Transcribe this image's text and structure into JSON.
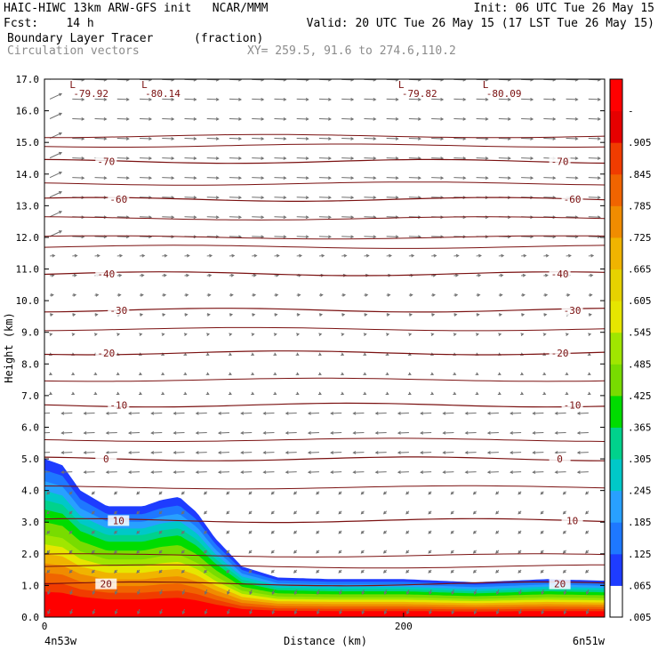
{
  "header": {
    "line1_left": "HAIC-HIWC 13km ARW-GFS init   NCAR/MMM",
    "line1_right": "Init: 06 UTC Tue 26 May 15",
    "line2_left": "Fcst:    14 h",
    "line2_right": "Valid: 20 UTC Tue 26 May 15 (17 LST Tue 26 May 15)",
    "line3_left": "Boundary Layer Tracer",
    "line3_mid": "(fraction)",
    "line4_left": "Circulation vectors",
    "line4_mid": "XY= 259.5, 91.6 to 274.6,110.2"
  },
  "chart_data": {
    "type": "heatmap",
    "xlabel": "Distance (km)",
    "ylabel": "Height (km)",
    "x_ticks": [
      "0",
      "200"
    ],
    "x_tick_values": [
      0,
      200
    ],
    "xlim": [
      0,
      312
    ],
    "ylim": [
      0,
      17
    ],
    "y_ticks": [
      "0.0",
      "1.0",
      "2.0",
      "3.0",
      "4.0",
      "5.0",
      "6.0",
      "7.0",
      "8.0",
      "9.0",
      "10.0",
      "11.0",
      "12.0",
      "13.0",
      "14.0",
      "15.0",
      "16.0",
      "17.0"
    ],
    "endpoints": {
      "left": "4n53w",
      "right": "6n51w"
    },
    "colorbar": {
      "labels": [
        ".005",
        ".065",
        ".125",
        ".185",
        ".245",
        ".305",
        ".365",
        ".425",
        ".485",
        ".545",
        ".605",
        ".665",
        ".725",
        ".785",
        ".845",
        ".905",
        "-"
      ],
      "colors": [
        "#ffffff",
        "#1e3cff",
        "#1e78ff",
        "#28a0ff",
        "#00c8c8",
        "#00d28c",
        "#00dc00",
        "#78dc00",
        "#a0e600",
        "#e6e600",
        "#e6d200",
        "#f0b400",
        "#f08c00",
        "#f06400",
        "#f03c00",
        "#e60000",
        "#ff0000"
      ]
    },
    "temperature_contours": [
      {
        "label": "20",
        "height_km": 1.05
      },
      {
        "label": "10",
        "height_km": 3.05
      },
      {
        "label": "0",
        "height_km": 5.0
      },
      {
        "label": "-10",
        "height_km": 6.7
      },
      {
        "label": "-20",
        "height_km": 8.35
      },
      {
        "label": "-30",
        "height_km": 9.7
      },
      {
        "label": "-40",
        "height_km": 10.85
      },
      {
        "label": "-60",
        "height_km": 13.2
      },
      {
        "label": "-70",
        "height_km": 14.4
      }
    ],
    "low_markers": [
      {
        "label": "L",
        "value": "-79.92",
        "x_km": 17
      },
      {
        "label": "L",
        "value": "-80.14",
        "x_km": 57
      },
      {
        "label": "L",
        "value": "-79.82",
        "x_km": 200
      },
      {
        "label": "L",
        "value": "-80.09",
        "x_km": 247
      }
    ],
    "tracer_top_km": [
      [
        0,
        5.0
      ],
      [
        10,
        4.8
      ],
      [
        20,
        4.0
      ],
      [
        35,
        3.5
      ],
      [
        55,
        3.5
      ],
      [
        65,
        3.7
      ],
      [
        75,
        3.8
      ],
      [
        85,
        3.3
      ],
      [
        95,
        2.5
      ],
      [
        110,
        1.6
      ],
      [
        130,
        1.25
      ],
      [
        160,
        1.2
      ],
      [
        200,
        1.2
      ],
      [
        240,
        1.1
      ],
      [
        280,
        1.2
      ],
      [
        312,
        1.15
      ]
    ]
  }
}
